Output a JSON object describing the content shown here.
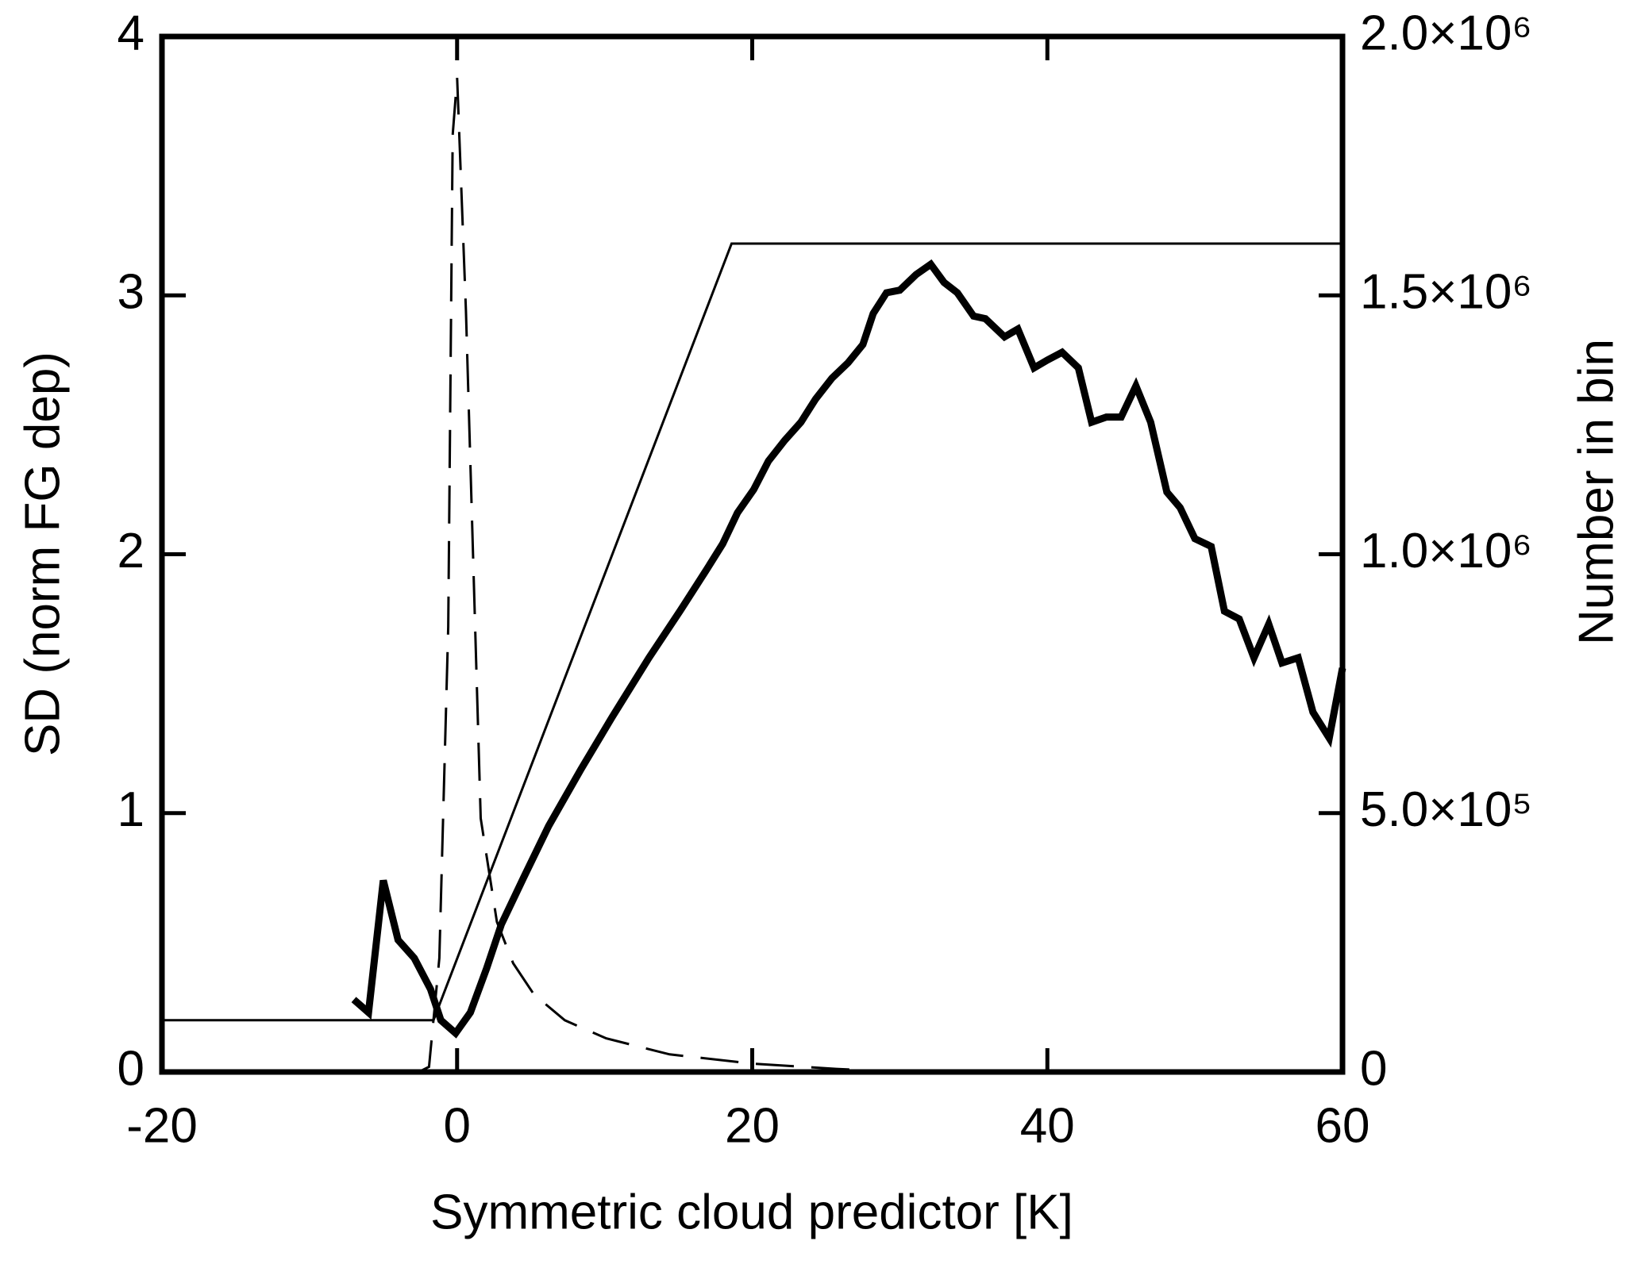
{
  "chart_data": {
    "type": "line",
    "xlabel": "Symmetric cloud predictor [K]",
    "ylabel": "SD (norm FG dep)",
    "y2label": "Number in bin",
    "xlim": [
      -20,
      60
    ],
    "xticks": [
      -20,
      0,
      20,
      40,
      60
    ],
    "ylim": [
      0,
      4
    ],
    "yticks": [
      0,
      1,
      2,
      3,
      4
    ],
    "y2lim": [
      0,
      2000000
    ],
    "y2ticks": [
      0,
      {
        "value": 500000,
        "label": "5.0×10⁵"
      },
      {
        "value": 1000000,
        "label": "1.0×10⁶"
      },
      {
        "value": 1500000,
        "label": "1.5×10⁶"
      },
      {
        "value": 2000000,
        "label": "2.0×10⁶"
      }
    ],
    "series": [
      {
        "color": "#000000",
        "linewidth": 9,
        "dash": "none",
        "x": [
          -7.0,
          -6.0,
          -5.0,
          -4.0,
          -2.9,
          -1.8,
          -1.1,
          -0.1,
          0.9,
          2.0,
          3.0,
          4.5,
          6.2,
          8.4,
          10.5,
          13.0,
          15.1,
          16.9,
          18.0,
          19.0,
          20.1,
          21.1,
          22.2,
          23.3,
          24.3,
          25.4,
          26.5,
          27.5,
          28.2,
          29.1,
          30.0,
          31.1,
          32.1,
          33.0,
          33.9,
          35.0,
          35.8,
          37.1,
          38.0,
          39.1,
          40.0,
          41.0,
          42.1,
          43.0,
          44.0,
          45.0,
          46.0,
          47.0,
          48.1,
          49.0,
          50.0,
          51.1,
          52.0,
          53.0,
          54.0,
          55.0,
          55.9,
          57.0,
          58.0,
          59.1,
          60.0
        ],
        "values": [
          0.28,
          0.23,
          0.74,
          0.51,
          0.44,
          0.32,
          0.2,
          0.15,
          0.23,
          0.4,
          0.57,
          0.75,
          0.95,
          1.17,
          1.37,
          1.6,
          1.78,
          1.94,
          2.04,
          2.16,
          2.25,
          2.36,
          2.44,
          2.51,
          2.6,
          2.68,
          2.74,
          2.81,
          2.93,
          3.01,
          3.02,
          3.08,
          3.12,
          3.05,
          3.01,
          2.92,
          2.91,
          2.84,
          2.87,
          2.72,
          2.75,
          2.78,
          2.72,
          2.51,
          2.53,
          2.53,
          2.65,
          2.51,
          2.24,
          2.18,
          2.06,
          2.03,
          1.78,
          1.75,
          1.6,
          1.73,
          1.58,
          1.6,
          1.39,
          1.29,
          1.56
        ]
      },
      {
        "color": "#000000",
        "linewidth": 3,
        "dash": "none",
        "x": [
          -20,
          -1.6,
          18.6,
          60
        ],
        "values": [
          0.2,
          0.2,
          3.2,
          3.2
        ]
      },
      {
        "color": "#000000",
        "linewidth": 3,
        "dash": "48 22",
        "axis": "y2",
        "x": [
          -2.6,
          -1.9,
          -1.2,
          -0.6,
          -0.3,
          0,
          0.6,
          1.6,
          2.7,
          3.8,
          5.2,
          7.3,
          10.1,
          14.4,
          20.1,
          25.7,
          30
        ],
        "values": [
          0,
          10000,
          220000,
          860000,
          1810000,
          1920000,
          1470000,
          490000,
          290000,
          210000,
          150000,
          100000,
          65000,
          34000,
          16000,
          6000,
          0
        ]
      }
    ]
  }
}
